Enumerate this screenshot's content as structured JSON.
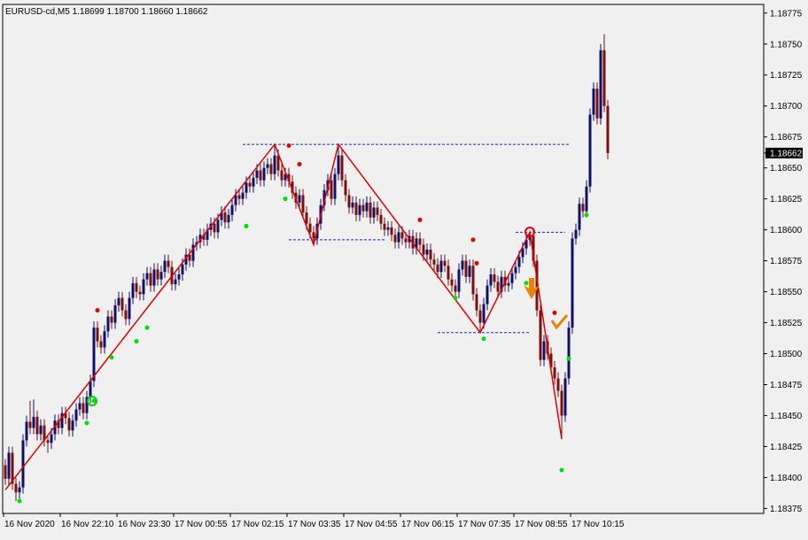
{
  "chart_data": {
    "type": "candlestick",
    "title": "EURUSD-cd,M5  1.18699 1.18700 1.18660 1.18662",
    "ylim": [
      1.18371,
      1.18782
    ],
    "yticks": [
      1.18775,
      {
        "value": 1.1875,
        "label": "1.18750"
      },
      1.18725,
      {
        "value": 1.187,
        "label": "1.18700"
      },
      1.18675,
      {
        "value": 1.1865,
        "label": "1.18650"
      },
      1.18625,
      {
        "value": 1.186,
        "label": "1.18600"
      },
      1.18575,
      {
        "value": 1.1855,
        "label": "1.18550"
      },
      1.18525,
      {
        "value": 1.185,
        "label": "1.18500"
      },
      1.18475,
      {
        "value": 1.1845,
        "label": "1.18450"
      },
      1.18425,
      {
        "value": 1.184,
        "label": "1.18400"
      },
      1.18375
    ],
    "current_price": 1.18662,
    "time_labels": [
      {
        "bar": 0,
        "label": "16 Nov 2020"
      },
      {
        "bar": 16,
        "label": "16 Nov 22:10"
      },
      {
        "bar": 32,
        "label": "16 Nov 23:30"
      },
      {
        "bar": 48,
        "label": "17 Nov 00:55"
      },
      {
        "bar": 64,
        "label": "17 Nov 02:15"
      },
      {
        "bar": 80,
        "label": "17 Nov 03:35"
      },
      {
        "bar": 96,
        "label": "17 Nov 04:55"
      },
      {
        "bar": 112,
        "label": "17 Nov 06:15"
      },
      {
        "bar": 128,
        "label": "17 Nov 07:35"
      },
      {
        "bar": 144,
        "label": "17 Nov 08:55"
      },
      {
        "bar": 160,
        "label": "17 Nov 10:15"
      }
    ],
    "bull_color": "#10106a",
    "bear_color": "#7a1010",
    "ohlc": [
      [
        1.1841,
        1.18415,
        1.18394,
        1.18399
      ],
      [
        1.18399,
        1.18425,
        1.18394,
        1.1842
      ],
      [
        1.1842,
        1.18425,
        1.1839,
        1.18395
      ],
      [
        1.18395,
        1.184,
        1.18381,
        1.18388
      ],
      [
        1.18388,
        1.18397,
        1.18383,
        1.18392
      ],
      [
        1.18392,
        1.18435,
        1.18387,
        1.1843
      ],
      [
        1.1843,
        1.1845,
        1.18425,
        1.18445
      ],
      [
        1.18445,
        1.18462,
        1.18435,
        1.1844
      ],
      [
        1.1844,
        1.18463,
        1.18435,
        1.18449
      ],
      [
        1.18449,
        1.18454,
        1.1843,
        1.18435
      ],
      [
        1.18435,
        1.18447,
        1.1843,
        1.18442
      ],
      [
        1.18442,
        1.18447,
        1.18425,
        1.1843
      ],
      [
        1.1843,
        1.18433,
        1.1842,
        1.18428
      ],
      [
        1.18428,
        1.1844,
        1.18423,
        1.18435
      ],
      [
        1.18435,
        1.18451,
        1.1843,
        1.18446
      ],
      [
        1.18446,
        1.18451,
        1.18435,
        1.1844
      ],
      [
        1.1844,
        1.18457,
        1.18435,
        1.18452
      ],
      [
        1.18452,
        1.18457,
        1.18443,
        1.18448
      ],
      [
        1.18448,
        1.18453,
        1.18433,
        1.18438
      ],
      [
        1.18438,
        1.18451,
        1.18433,
        1.18446
      ],
      [
        1.18446,
        1.1846,
        1.18441,
        1.18455
      ],
      [
        1.18455,
        1.18465,
        1.1845,
        1.1846
      ],
      [
        1.1846,
        1.18465,
        1.18447,
        1.18452
      ],
      [
        1.18452,
        1.1847,
        1.18447,
        1.18465
      ],
      [
        1.18465,
        1.18483,
        1.1846,
        1.18478
      ],
      [
        1.18478,
        1.18526,
        1.18473,
        1.18521
      ],
      [
        1.18521,
        1.18526,
        1.18505,
        1.1851
      ],
      [
        1.1851,
        1.18515,
        1.185,
        1.18505
      ],
      [
        1.18505,
        1.18523,
        1.185,
        1.18518
      ],
      [
        1.18518,
        1.18535,
        1.18513,
        1.1853
      ],
      [
        1.1853,
        1.18535,
        1.1852,
        1.18525
      ],
      [
        1.18525,
        1.18544,
        1.1852,
        1.18539
      ],
      [
        1.18539,
        1.1855,
        1.18534,
        1.18545
      ],
      [
        1.18545,
        1.1855,
        1.1853,
        1.18535
      ],
      [
        1.18535,
        1.1854,
        1.18523,
        1.18528
      ],
      [
        1.18528,
        1.1855,
        1.18523,
        1.18545
      ],
      [
        1.18545,
        1.18562,
        1.1854,
        1.18557
      ],
      [
        1.18557,
        1.18562,
        1.18545,
        1.1855
      ],
      [
        1.1855,
        1.18555,
        1.18543,
        1.18548
      ],
      [
        1.18548,
        1.18565,
        1.18543,
        1.1856
      ],
      [
        1.1856,
        1.1857,
        1.18555,
        1.18565
      ],
      [
        1.18565,
        1.1857,
        1.1855,
        1.18555
      ],
      [
        1.18555,
        1.18573,
        1.1855,
        1.18568
      ],
      [
        1.18568,
        1.18573,
        1.18555,
        1.1856
      ],
      [
        1.1856,
        1.18571,
        1.18555,
        1.18566
      ],
      [
        1.18566,
        1.1858,
        1.18561,
        1.18575
      ],
      [
        1.18575,
        1.1858,
        1.18565,
        1.1857
      ],
      [
        1.1857,
        1.18575,
        1.18551,
        1.18556
      ],
      [
        1.18556,
        1.18565,
        1.18551,
        1.1856
      ],
      [
        1.1856,
        1.18569,
        1.18555,
        1.18564
      ],
      [
        1.18564,
        1.18577,
        1.18559,
        1.18572
      ],
      [
        1.18572,
        1.18585,
        1.18567,
        1.1858
      ],
      [
        1.1858,
        1.18585,
        1.1857,
        1.18575
      ],
      [
        1.18575,
        1.18593,
        1.1857,
        1.18588
      ],
      [
        1.18588,
        1.18595,
        1.18583,
        1.1859
      ],
      [
        1.1859,
        1.18601,
        1.18585,
        1.18596
      ],
      [
        1.18596,
        1.18601,
        1.18587,
        1.18592
      ],
      [
        1.18592,
        1.18605,
        1.18587,
        1.186
      ],
      [
        1.186,
        1.1861,
        1.18595,
        1.18605
      ],
      [
        1.18605,
        1.1861,
        1.18593,
        1.18598
      ],
      [
        1.18598,
        1.18613,
        1.18593,
        1.18608
      ],
      [
        1.18608,
        1.18619,
        1.18603,
        1.18614
      ],
      [
        1.18614,
        1.18619,
        1.18601,
        1.18606
      ],
      [
        1.18606,
        1.18617,
        1.18601,
        1.18612
      ],
      [
        1.18612,
        1.18625,
        1.18607,
        1.1862
      ],
      [
        1.1862,
        1.18633,
        1.18615,
        1.18628
      ],
      [
        1.18628,
        1.18633,
        1.1862,
        1.18625
      ],
      [
        1.18625,
        1.18635,
        1.1862,
        1.1863
      ],
      [
        1.1863,
        1.18643,
        1.18625,
        1.18638
      ],
      [
        1.18638,
        1.18643,
        1.1863,
        1.18635
      ],
      [
        1.18635,
        1.18647,
        1.1863,
        1.18642
      ],
      [
        1.18642,
        1.18653,
        1.18637,
        1.18648
      ],
      [
        1.18648,
        1.18653,
        1.18635,
        1.1864
      ],
      [
        1.1864,
        1.18655,
        1.18635,
        1.1865
      ],
      [
        1.1865,
        1.18658,
        1.18645,
        1.18653
      ],
      [
        1.18653,
        1.18658,
        1.1864,
        1.18645
      ],
      [
        1.18645,
        1.18669,
        1.1864,
        1.1866
      ],
      [
        1.1866,
        1.18665,
        1.18643,
        1.18648
      ],
      [
        1.18648,
        1.18653,
        1.18635,
        1.1864
      ],
      [
        1.1864,
        1.1865,
        1.18635,
        1.18645
      ],
      [
        1.18645,
        1.1865,
        1.18634,
        1.18639
      ],
      [
        1.18639,
        1.18644,
        1.18625,
        1.1863
      ],
      [
        1.1863,
        1.18635,
        1.18617,
        1.18622
      ],
      [
        1.18622,
        1.18633,
        1.18617,
        1.18628
      ],
      [
        1.18628,
        1.18633,
        1.18609,
        1.18614
      ],
      [
        1.18614,
        1.18619,
        1.186,
        1.18605
      ],
      [
        1.18605,
        1.1861,
        1.18593,
        1.18598
      ],
      [
        1.18598,
        1.18603,
        1.18588,
        1.18593
      ],
      [
        1.18593,
        1.1861,
        1.18588,
        1.18605
      ],
      [
        1.18605,
        1.18625,
        1.186,
        1.1862
      ],
      [
        1.1862,
        1.18637,
        1.18615,
        1.18632
      ],
      [
        1.18632,
        1.18645,
        1.18627,
        1.1864
      ],
      [
        1.1864,
        1.18645,
        1.1862,
        1.18625
      ],
      [
        1.18625,
        1.1865,
        1.1862,
        1.18645
      ],
      [
        1.18645,
        1.18669,
        1.1864,
        1.1866
      ],
      [
        1.1866,
        1.18665,
        1.18635,
        1.1864
      ],
      [
        1.1864,
        1.18645,
        1.18623,
        1.18628
      ],
      [
        1.18628,
        1.18633,
        1.18613,
        1.18618
      ],
      [
        1.18618,
        1.18627,
        1.18613,
        1.18622
      ],
      [
        1.18622,
        1.18627,
        1.18607,
        1.18612
      ],
      [
        1.18612,
        1.18625,
        1.18607,
        1.1862
      ],
      [
        1.1862,
        1.18625,
        1.1861,
        1.18615
      ],
      [
        1.18615,
        1.18627,
        1.1861,
        1.18622
      ],
      [
        1.18622,
        1.18627,
        1.18605,
        1.1861
      ],
      [
        1.1861,
        1.18623,
        1.18605,
        1.18618
      ],
      [
        1.18618,
        1.18623,
        1.18607,
        1.18612
      ],
      [
        1.18612,
        1.18617,
        1.186,
        1.18605
      ],
      [
        1.18605,
        1.1861,
        1.18595,
        1.186
      ],
      [
        1.186,
        1.18607,
        1.18595,
        1.18602
      ],
      [
        1.18602,
        1.18607,
        1.18591,
        1.18596
      ],
      [
        1.18596,
        1.18601,
        1.18585,
        1.1859
      ],
      [
        1.1859,
        1.18603,
        1.18585,
        1.18598
      ],
      [
        1.18598,
        1.18603,
        1.18588,
        1.18593
      ],
      [
        1.18593,
        1.18598,
        1.18585,
        1.1859
      ],
      [
        1.1859,
        1.186,
        1.18585,
        1.18595
      ],
      [
        1.18595,
        1.186,
        1.1858,
        1.18585
      ],
      [
        1.18585,
        1.18598,
        1.1858,
        1.18593
      ],
      [
        1.18593,
        1.18598,
        1.18583,
        1.18588
      ],
      [
        1.18588,
        1.18593,
        1.18575,
        1.1858
      ],
      [
        1.1858,
        1.18589,
        1.18575,
        1.18584
      ],
      [
        1.18584,
        1.18589,
        1.18571,
        1.18576
      ],
      [
        1.18576,
        1.18581,
        1.18567,
        1.18572
      ],
      [
        1.18572,
        1.18577,
        1.18561,
        1.18566
      ],
      [
        1.18566,
        1.1858,
        1.18561,
        1.18575
      ],
      [
        1.18575,
        1.1858,
        1.18566,
        1.18571
      ],
      [
        1.18571,
        1.18576,
        1.18555,
        1.1856
      ],
      [
        1.1856,
        1.18565,
        1.1855,
        1.18555
      ],
      [
        1.18555,
        1.1856,
        1.18545,
        1.1855
      ],
      [
        1.1855,
        1.18573,
        1.18545,
        1.18568
      ],
      [
        1.18568,
        1.1858,
        1.18563,
        1.18575
      ],
      [
        1.18575,
        1.1858,
        1.18557,
        1.18562
      ],
      [
        1.18562,
        1.18576,
        1.18557,
        1.18571
      ],
      [
        1.18571,
        1.18576,
        1.18543,
        1.18548
      ],
      [
        1.18548,
        1.18553,
        1.1853,
        1.18535
      ],
      [
        1.18535,
        1.1854,
        1.18517,
        1.18525
      ],
      [
        1.18525,
        1.18545,
        1.1852,
        1.1854
      ],
      [
        1.1854,
        1.1856,
        1.18535,
        1.18555
      ],
      [
        1.18555,
        1.18569,
        1.1855,
        1.18564
      ],
      [
        1.18564,
        1.18569,
        1.18553,
        1.18558
      ],
      [
        1.18558,
        1.18563,
        1.18545,
        1.1855
      ],
      [
        1.1855,
        1.18567,
        1.18545,
        1.18562
      ],
      [
        1.18562,
        1.18567,
        1.1855,
        1.18555
      ],
      [
        1.18555,
        1.18562,
        1.1855,
        1.18557
      ],
      [
        1.18557,
        1.1857,
        1.18552,
        1.18565
      ],
      [
        1.18565,
        1.18575,
        1.1856,
        1.1857
      ],
      [
        1.1857,
        1.18583,
        1.18565,
        1.18578
      ],
      [
        1.18578,
        1.1859,
        1.18573,
        1.18585
      ],
      [
        1.18585,
        1.18597,
        1.1858,
        1.18592
      ],
      [
        1.18592,
        1.18598,
        1.18587,
        1.18595
      ],
      [
        1.18595,
        1.186,
        1.1857,
        1.18575
      ],
      [
        1.18575,
        1.1858,
        1.1853,
        1.18535
      ],
      [
        1.18535,
        1.1854,
        1.1849,
        1.18495
      ],
      [
        1.18495,
        1.18515,
        1.1849,
        1.1851
      ],
      [
        1.1851,
        1.18515,
        1.18495,
        1.185
      ],
      [
        1.185,
        1.18505,
        1.18484,
        1.18489
      ],
      [
        1.18489,
        1.18494,
        1.18475,
        1.1848
      ],
      [
        1.1848,
        1.18485,
        1.18465,
        1.1847
      ],
      [
        1.1847,
        1.18475,
        1.18431,
        1.1845
      ],
      [
        1.1845,
        1.18485,
        1.18445,
        1.1848
      ],
      [
        1.1848,
        1.18526,
        1.18475,
        1.18521
      ],
      [
        1.18521,
        1.18598,
        1.18516,
        1.18593
      ],
      [
        1.18593,
        1.18605,
        1.18588,
        1.186
      ],
      [
        1.186,
        1.18626,
        1.18595,
        1.18621
      ],
      [
        1.18621,
        1.18626,
        1.1861,
        1.18615
      ],
      [
        1.18615,
        1.1864,
        1.1861,
        1.18635
      ],
      [
        1.18635,
        1.18698,
        1.1863,
        1.18693
      ],
      [
        1.18693,
        1.18719,
        1.18688,
        1.18714
      ],
      [
        1.18714,
        1.18719,
        1.18685,
        1.1869
      ],
      [
        1.1869,
        1.1875,
        1.18685,
        1.18745
      ],
      [
        1.18745,
        1.18758,
        1.18695,
        1.187
      ],
      [
        1.187,
        1.18705,
        1.18657,
        1.18662
      ]
    ],
    "zigzag": {
      "color": "#e00000",
      "bars": [
        0,
        76,
        87,
        94,
        134,
        148,
        157
      ],
      "values": [
        1.1839,
        1.18669,
        1.18588,
        1.18669,
        1.18517,
        1.18598,
        1.18431
      ]
    },
    "levels": {
      "color": "#2020c0",
      "items": [
        {
          "value": 1.18669,
          "from": 67,
          "to": 159
        },
        {
          "value": 1.18592,
          "from": 80,
          "to": 107
        },
        {
          "value": 1.18517,
          "from": 122,
          "to": 148
        },
        {
          "value": 1.18598,
          "from": 144,
          "to": 158
        }
      ]
    },
    "sell_signals": {
      "color": "#e00000",
      "bars": [
        26,
        80,
        83,
        117,
        132,
        133,
        155
      ],
      "values": [
        1.18535,
        1.18668,
        1.18653,
        1.18608,
        1.18592,
        1.18573,
        1.18533
      ]
    },
    "buy_signals": {
      "color": "#00e000",
      "bars": [
        4,
        23,
        25,
        30,
        37,
        40,
        68,
        79,
        127,
        135,
        147,
        157,
        159,
        164
      ],
      "values": [
        1.18381,
        1.18444,
        1.18462,
        1.18497,
        1.1851,
        1.18521,
        1.18603,
        1.18625,
        1.18545,
        1.18512,
        1.18557,
        1.18406,
        1.18496,
        1.18612
      ]
    }
  }
}
